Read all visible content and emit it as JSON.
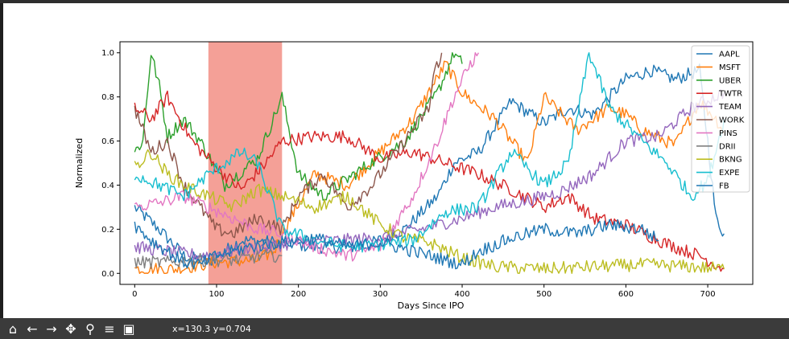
{
  "chart_data": {
    "type": "line",
    "xlabel": "Days Since IPO",
    "ylabel": "Normalized",
    "xlim": [
      -18,
      755
    ],
    "ylim": [
      -0.05,
      1.05
    ],
    "x_ticks": [
      0,
      100,
      200,
      300,
      400,
      500,
      600,
      700
    ],
    "y_ticks": [
      0.0,
      0.2,
      0.4,
      0.6,
      0.8,
      1.0
    ],
    "grid": false,
    "legend_position": "top-right",
    "highlight_span": {
      "x_start": 90,
      "x_end": 180,
      "color": "#f4a097"
    },
    "series": [
      {
        "name": "AAPL",
        "color": "#1f77b4",
        "anchors": [
          [
            0,
            0.3
          ],
          [
            30,
            0.2
          ],
          [
            60,
            0.08
          ],
          [
            90,
            0.05
          ],
          [
            130,
            0.15
          ],
          [
            180,
            0.14
          ],
          [
            220,
            0.12
          ],
          [
            280,
            0.12
          ],
          [
            330,
            0.2
          ],
          [
            370,
            0.35
          ],
          [
            390,
            0.5
          ],
          [
            420,
            0.55
          ],
          [
            460,
            0.78
          ],
          [
            500,
            0.68
          ],
          [
            530,
            0.75
          ],
          [
            560,
            0.72
          ],
          [
            600,
            0.88
          ],
          [
            630,
            0.92
          ],
          [
            660,
            0.88
          ],
          [
            690,
            0.92
          ],
          [
            700,
            0.6
          ],
          [
            710,
            0.25
          ],
          [
            720,
            0.18
          ]
        ]
      },
      {
        "name": "MSFT",
        "color": "#ff7f0e",
        "anchors": [
          [
            0,
            0.02
          ],
          [
            50,
            0.02
          ],
          [
            100,
            0.05
          ],
          [
            150,
            0.06
          ],
          [
            170,
            0.1
          ],
          [
            180,
            0.18
          ],
          [
            220,
            0.45
          ],
          [
            260,
            0.4
          ],
          [
            300,
            0.55
          ],
          [
            340,
            0.7
          ],
          [
            380,
            0.95
          ],
          [
            400,
            0.82
          ],
          [
            440,
            0.7
          ],
          [
            480,
            0.5
          ],
          [
            500,
            0.8
          ],
          [
            540,
            0.65
          ],
          [
            580,
            0.75
          ],
          [
            600,
            0.72
          ],
          [
            620,
            0.65
          ],
          [
            660,
            0.58
          ],
          [
            690,
            0.78
          ],
          [
            710,
            0.7
          ],
          [
            720,
            0.64
          ]
        ]
      },
      {
        "name": "UBER",
        "color": "#2ca02c",
        "anchors": [
          [
            0,
            0.55
          ],
          [
            10,
            0.6
          ],
          [
            20,
            1.0
          ],
          [
            30,
            0.85
          ],
          [
            40,
            0.62
          ],
          [
            60,
            0.7
          ],
          [
            80,
            0.6
          ],
          [
            110,
            0.4
          ],
          [
            150,
            0.52
          ],
          [
            180,
            0.8
          ],
          [
            200,
            0.45
          ],
          [
            230,
            0.35
          ],
          [
            280,
            0.48
          ],
          [
            330,
            0.6
          ],
          [
            370,
            0.82
          ],
          [
            390,
            1.0
          ],
          [
            400,
            0.95
          ]
        ]
      },
      {
        "name": "TWTR",
        "color": "#d62728",
        "anchors": [
          [
            0,
            0.75
          ],
          [
            20,
            0.7
          ],
          [
            40,
            0.8
          ],
          [
            70,
            0.6
          ],
          [
            100,
            0.48
          ],
          [
            130,
            0.38
          ],
          [
            160,
            0.5
          ],
          [
            180,
            0.6
          ],
          [
            220,
            0.62
          ],
          [
            260,
            0.62
          ],
          [
            300,
            0.52
          ],
          [
            340,
            0.55
          ],
          [
            380,
            0.5
          ],
          [
            420,
            0.45
          ],
          [
            460,
            0.38
          ],
          [
            500,
            0.3
          ],
          [
            530,
            0.35
          ],
          [
            560,
            0.25
          ],
          [
            600,
            0.22
          ],
          [
            640,
            0.15
          ],
          [
            660,
            0.12
          ],
          [
            690,
            0.08
          ],
          [
            720,
            0.02
          ]
        ]
      },
      {
        "name": "TEAM",
        "color": "#9467bd",
        "anchors": [
          [
            0,
            0.12
          ],
          [
            40,
            0.1
          ],
          [
            80,
            0.08
          ],
          [
            120,
            0.1
          ],
          [
            160,
            0.12
          ],
          [
            200,
            0.14
          ],
          [
            250,
            0.15
          ],
          [
            300,
            0.16
          ],
          [
            350,
            0.2
          ],
          [
            400,
            0.25
          ],
          [
            440,
            0.3
          ],
          [
            480,
            0.33
          ],
          [
            520,
            0.37
          ],
          [
            560,
            0.45
          ],
          [
            600,
            0.6
          ],
          [
            640,
            0.62
          ],
          [
            680,
            0.75
          ],
          [
            720,
            0.82
          ]
        ]
      },
      {
        "name": "WORK",
        "color": "#8c564b",
        "anchors": [
          [
            0,
            0.75
          ],
          [
            20,
            0.55
          ],
          [
            40,
            0.6
          ],
          [
            60,
            0.4
          ],
          [
            80,
            0.3
          ],
          [
            100,
            0.2
          ],
          [
            120,
            0.18
          ],
          [
            150,
            0.25
          ],
          [
            180,
            0.2
          ],
          [
            200,
            0.35
          ],
          [
            230,
            0.45
          ],
          [
            260,
            0.3
          ],
          [
            290,
            0.4
          ],
          [
            320,
            0.55
          ],
          [
            345,
            0.68
          ],
          [
            360,
            0.75
          ],
          [
            365,
            0.9
          ],
          [
            375,
            1.0
          ]
        ]
      },
      {
        "name": "PINS",
        "color": "#e377c2",
        "anchors": [
          [
            0,
            0.3
          ],
          [
            30,
            0.32
          ],
          [
            60,
            0.35
          ],
          [
            90,
            0.3
          ],
          [
            120,
            0.25
          ],
          [
            150,
            0.2
          ],
          [
            180,
            0.18
          ],
          [
            220,
            0.12
          ],
          [
            260,
            0.08
          ],
          [
            300,
            0.12
          ],
          [
            340,
            0.35
          ],
          [
            370,
            0.6
          ],
          [
            390,
            0.8
          ],
          [
            410,
            0.95
          ],
          [
            420,
            1.0
          ]
        ]
      },
      {
        "name": "DRII",
        "color": "#7f7f7f",
        "anchors": [
          [
            0,
            0.05
          ],
          [
            40,
            0.05
          ],
          [
            80,
            0.06
          ],
          [
            120,
            0.06
          ],
          [
            160,
            0.08
          ],
          [
            180,
            0.08
          ]
        ]
      },
      {
        "name": "BKNG",
        "color": "#bcbd22",
        "anchors": [
          [
            0,
            0.48
          ],
          [
            20,
            0.55
          ],
          [
            40,
            0.45
          ],
          [
            60,
            0.4
          ],
          [
            90,
            0.35
          ],
          [
            120,
            0.3
          ],
          [
            150,
            0.38
          ],
          [
            180,
            0.35
          ],
          [
            220,
            0.3
          ],
          [
            260,
            0.35
          ],
          [
            300,
            0.22
          ],
          [
            330,
            0.16
          ],
          [
            360,
            0.14
          ],
          [
            400,
            0.07
          ],
          [
            440,
            0.03
          ],
          [
            500,
            0.02
          ],
          [
            560,
            0.03
          ],
          [
            620,
            0.04
          ],
          [
            680,
            0.03
          ],
          [
            720,
            0.02
          ]
        ]
      },
      {
        "name": "EXPE",
        "color": "#17becf",
        "anchors": [
          [
            0,
            0.45
          ],
          [
            30,
            0.4
          ],
          [
            60,
            0.35
          ],
          [
            90,
            0.45
          ],
          [
            130,
            0.55
          ],
          [
            150,
            0.5
          ],
          [
            180,
            0.2
          ],
          [
            220,
            0.15
          ],
          [
            260,
            0.12
          ],
          [
            300,
            0.13
          ],
          [
            340,
            0.15
          ],
          [
            380,
            0.28
          ],
          [
            420,
            0.3
          ],
          [
            460,
            0.55
          ],
          [
            500,
            0.4
          ],
          [
            530,
            0.5
          ],
          [
            555,
            1.0
          ],
          [
            580,
            0.75
          ],
          [
            620,
            0.6
          ],
          [
            650,
            0.5
          ],
          [
            680,
            0.35
          ],
          [
            700,
            0.42
          ],
          [
            720,
            0.7
          ]
        ]
      },
      {
        "name": "FB",
        "color": "#1f77b4",
        "anchors": [
          [
            0,
            0.22
          ],
          [
            20,
            0.15
          ],
          [
            40,
            0.1
          ],
          [
            60,
            0.05
          ],
          [
            80,
            0.04
          ],
          [
            100,
            0.08
          ],
          [
            140,
            0.12
          ],
          [
            180,
            0.14
          ],
          [
            220,
            0.16
          ],
          [
            260,
            0.12
          ],
          [
            300,
            0.14
          ],
          [
            340,
            0.1
          ],
          [
            380,
            0.06
          ],
          [
            400,
            0.04
          ],
          [
            420,
            0.1
          ],
          [
            460,
            0.16
          ],
          [
            500,
            0.2
          ],
          [
            540,
            0.18
          ],
          [
            580,
            0.22
          ],
          [
            620,
            0.2
          ],
          [
            640,
            0.15
          ]
        ]
      }
    ]
  },
  "toolbar": {
    "buttons": [
      {
        "name": "home-icon",
        "glyph": "⌂"
      },
      {
        "name": "back-arrow-icon",
        "glyph": "←"
      },
      {
        "name": "forward-arrow-icon",
        "glyph": "→"
      },
      {
        "name": "pan-move-icon",
        "glyph": "✥"
      },
      {
        "name": "zoom-magnifier-icon",
        "glyph": "⚲"
      },
      {
        "name": "configure-subplots-icon",
        "glyph": "≡"
      },
      {
        "name": "save-figure-icon",
        "glyph": "▣"
      }
    ],
    "coords": "x=130.3 y=0.704"
  }
}
